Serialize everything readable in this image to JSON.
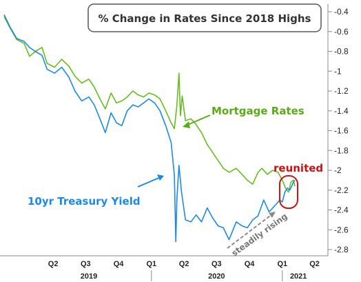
{
  "chart_data": {
    "type": "line",
    "title": "% Change in Rates Since 2018 Highs",
    "ylim": [
      -2.8,
      -0.4
    ],
    "y_ticks": [
      "-0.4",
      "-0.6",
      "-0.8",
      "-1",
      "-1.2",
      "-1.4",
      "-1.6",
      "-1.8",
      "-2",
      "-2.2",
      "-2.4",
      "-2.6",
      "-2.8"
    ],
    "x_quarter_ticks": [
      "Q2",
      "Q3",
      "Q4",
      "Q1",
      "Q2",
      "Q3",
      "Q4",
      "Q1",
      "Q2"
    ],
    "x_year_labels": [
      "2019",
      "2020",
      "2021"
    ],
    "grid": false,
    "series": [
      {
        "name": "Mortgage Rates",
        "color": "#66bb22",
        "points": [
          [
            "2018-11-15",
            -0.45
          ],
          [
            "2018-12-01",
            -0.56
          ],
          [
            "2018-12-20",
            -0.68
          ],
          [
            "2019-01-10",
            -0.72
          ],
          [
            "2019-01-25",
            -0.85
          ],
          [
            "2019-02-10",
            -0.8
          ],
          [
            "2019-03-01",
            -0.76
          ],
          [
            "2019-03-15",
            -0.92
          ],
          [
            "2019-04-05",
            -0.96
          ],
          [
            "2019-04-25",
            -0.88
          ],
          [
            "2019-05-15",
            -0.95
          ],
          [
            "2019-06-01",
            -1.05
          ],
          [
            "2019-06-20",
            -1.12
          ],
          [
            "2019-07-10",
            -1.08
          ],
          [
            "2019-07-25",
            -1.16
          ],
          [
            "2019-08-10",
            -1.28
          ],
          [
            "2019-08-25",
            -1.38
          ],
          [
            "2019-09-10",
            -1.22
          ],
          [
            "2019-09-25",
            -1.32
          ],
          [
            "2019-10-10",
            -1.3
          ],
          [
            "2019-10-25",
            -1.26
          ],
          [
            "2019-11-10",
            -1.2
          ],
          [
            "2019-11-25",
            -1.24
          ],
          [
            "2019-12-10",
            -1.26
          ],
          [
            "2019-12-25",
            -1.22
          ],
          [
            "2020-01-10",
            -1.24
          ],
          [
            "2020-01-25",
            -1.28
          ],
          [
            "2020-02-10",
            -1.4
          ],
          [
            "2020-02-25",
            -1.52
          ],
          [
            "2020-03-05",
            -1.58
          ],
          [
            "2020-03-12",
            -1.35
          ],
          [
            "2020-03-18",
            -1.02
          ],
          [
            "2020-03-22",
            -1.45
          ],
          [
            "2020-03-27",
            -1.25
          ],
          [
            "2020-04-05",
            -1.5
          ],
          [
            "2020-04-20",
            -1.48
          ],
          [
            "2020-05-01",
            -1.52
          ],
          [
            "2020-05-20",
            -1.62
          ],
          [
            "2020-06-05",
            -1.74
          ],
          [
            "2020-06-20",
            -1.82
          ],
          [
            "2020-07-05",
            -1.9
          ],
          [
            "2020-07-20",
            -1.98
          ],
          [
            "2020-08-05",
            -2.02
          ],
          [
            "2020-08-25",
            -1.98
          ],
          [
            "2020-09-10",
            -2.04
          ],
          [
            "2020-09-25",
            -2.1
          ],
          [
            "2020-10-10",
            -2.14
          ],
          [
            "2020-10-25",
            -2.02
          ],
          [
            "2020-11-05",
            -1.98
          ],
          [
            "2020-11-20",
            -2.04
          ],
          [
            "2020-12-05",
            -2.0
          ],
          [
            "2020-12-20",
            -2.02
          ],
          [
            "2021-01-01",
            -2.1
          ],
          [
            "2021-01-10",
            -2.18
          ],
          [
            "2021-01-18",
            -2.22
          ],
          [
            "2021-01-25",
            -2.12
          ],
          [
            "2021-02-01",
            -2.1
          ],
          [
            "2021-02-05",
            -2.16
          ]
        ]
      },
      {
        "name": "10yr Treasury Yield",
        "color": "#1e88e5",
        "points": [
          [
            "2018-11-15",
            -0.43
          ],
          [
            "2018-12-01",
            -0.55
          ],
          [
            "2018-12-20",
            -0.67
          ],
          [
            "2019-01-10",
            -0.7
          ],
          [
            "2019-01-25",
            -0.76
          ],
          [
            "2019-02-10",
            -0.8
          ],
          [
            "2019-03-01",
            -0.84
          ],
          [
            "2019-03-15",
            -0.98
          ],
          [
            "2019-04-05",
            -1.02
          ],
          [
            "2019-04-25",
            -0.96
          ],
          [
            "2019-05-15",
            -1.06
          ],
          [
            "2019-06-01",
            -1.2
          ],
          [
            "2019-06-20",
            -1.3
          ],
          [
            "2019-07-10",
            -1.26
          ],
          [
            "2019-07-25",
            -1.34
          ],
          [
            "2019-08-10",
            -1.48
          ],
          [
            "2019-08-25",
            -1.62
          ],
          [
            "2019-09-10",
            -1.42
          ],
          [
            "2019-09-25",
            -1.52
          ],
          [
            "2019-10-10",
            -1.55
          ],
          [
            "2019-10-25",
            -1.4
          ],
          [
            "2019-11-10",
            -1.34
          ],
          [
            "2019-11-25",
            -1.36
          ],
          [
            "2019-12-10",
            -1.32
          ],
          [
            "2019-12-25",
            -1.28
          ],
          [
            "2020-01-10",
            -1.32
          ],
          [
            "2020-01-25",
            -1.4
          ],
          [
            "2020-02-10",
            -1.55
          ],
          [
            "2020-02-25",
            -1.72
          ],
          [
            "2020-03-05",
            -2.05
          ],
          [
            "2020-03-09",
            -2.72
          ],
          [
            "2020-03-12",
            -2.3
          ],
          [
            "2020-03-18",
            -1.95
          ],
          [
            "2020-03-25",
            -2.22
          ],
          [
            "2020-04-05",
            -2.5
          ],
          [
            "2020-04-20",
            -2.52
          ],
          [
            "2020-05-05",
            -2.45
          ],
          [
            "2020-05-20",
            -2.52
          ],
          [
            "2020-06-05",
            -2.38
          ],
          [
            "2020-06-20",
            -2.48
          ],
          [
            "2020-07-05",
            -2.56
          ],
          [
            "2020-07-20",
            -2.58
          ],
          [
            "2020-08-05",
            -2.7
          ],
          [
            "2020-08-25",
            -2.52
          ],
          [
            "2020-09-10",
            -2.56
          ],
          [
            "2020-09-25",
            -2.58
          ],
          [
            "2020-10-10",
            -2.5
          ],
          [
            "2020-10-25",
            -2.46
          ],
          [
            "2020-11-10",
            -2.3
          ],
          [
            "2020-11-25",
            -2.42
          ],
          [
            "2020-12-10",
            -2.36
          ],
          [
            "2020-12-25",
            -2.3
          ],
          [
            "2021-01-01",
            -2.32
          ],
          [
            "2021-01-08",
            -2.22
          ],
          [
            "2021-01-15",
            -2.18
          ],
          [
            "2021-01-22",
            -2.2
          ],
          [
            "2021-02-01",
            -2.12
          ],
          [
            "2021-02-05",
            -2.1
          ]
        ]
      }
    ],
    "annotations": {
      "mortgage_label": "Mortgage Rates",
      "treasury_label": "10yr Treasury Yield",
      "reunited": "reunited",
      "steadily_rising": "steadily rising"
    }
  }
}
